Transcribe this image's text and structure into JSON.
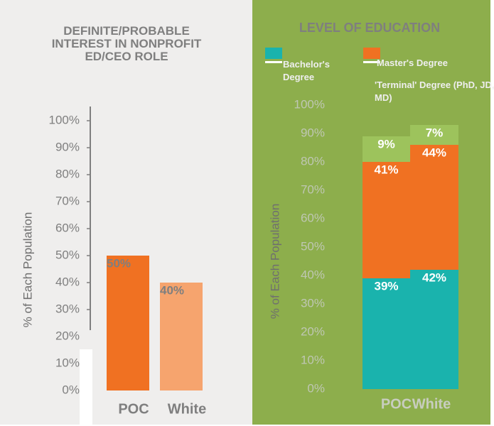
{
  "chart_data": [
    {
      "type": "bar",
      "title": "DEFINITE/PROBABLE INTEREST IN NONPROFIT ED/CEO ROLE",
      "y_label": "% of Each Population",
      "categories": [
        "POC",
        "White"
      ],
      "values": [
        50,
        40
      ],
      "value_labels": [
        "50%",
        "40%"
      ],
      "colors": [
        "#f07122",
        "#f6a46e"
      ],
      "ylim": [
        0,
        100
      ],
      "yticks": [
        {
          "value": 0,
          "label": "0%"
        },
        {
          "value": 10,
          "label": "10%"
        },
        {
          "value": 20,
          "label": "20%"
        },
        {
          "value": 30,
          "label": "30%"
        },
        {
          "value": 40,
          "label": "40%"
        },
        {
          "value": 50,
          "label": "50%"
        },
        {
          "value": 60,
          "label": "60%"
        },
        {
          "value": 70,
          "label": "70%"
        },
        {
          "value": 80,
          "label": "80%"
        },
        {
          "value": 90,
          "label": "90%"
        },
        {
          "value": 100,
          "label": "100%"
        }
      ]
    },
    {
      "type": "bar",
      "stacked": true,
      "title": "LEVEL OF EDUCATION",
      "y_label": "% of Each Population",
      "categories": [
        "POC",
        "White"
      ],
      "series": [
        {
          "name": "Bachelor's Degree",
          "color": "#1ab3ad",
          "values": [
            39,
            42
          ],
          "value_labels": [
            "39%",
            "42%"
          ]
        },
        {
          "name": "Master's Degree",
          "color": "#f07122",
          "values": [
            41,
            44
          ],
          "value_labels": [
            "41%",
            "44%"
          ]
        },
        {
          "name": "'Terminal' Degree (PhD, JD, MD)",
          "color": "#9dc35c",
          "values": [
            9,
            7
          ],
          "value_labels": [
            "9%",
            "7%"
          ]
        }
      ],
      "ylim": [
        0,
        100
      ],
      "yticks": [
        {
          "value": 0,
          "label": "0%"
        },
        {
          "value": 10,
          "label": "10%"
        },
        {
          "value": 20,
          "label": "20%"
        },
        {
          "value": 30,
          "label": "30%"
        },
        {
          "value": 40,
          "label": "40%"
        },
        {
          "value": 50,
          "label": "50%"
        },
        {
          "value": 60,
          "label": "60%"
        },
        {
          "value": 70,
          "label": "70%"
        },
        {
          "value": 80,
          "label": "80%"
        },
        {
          "value": 90,
          "label": "90%"
        },
        {
          "value": 100,
          "label": "100%"
        }
      ]
    }
  ]
}
